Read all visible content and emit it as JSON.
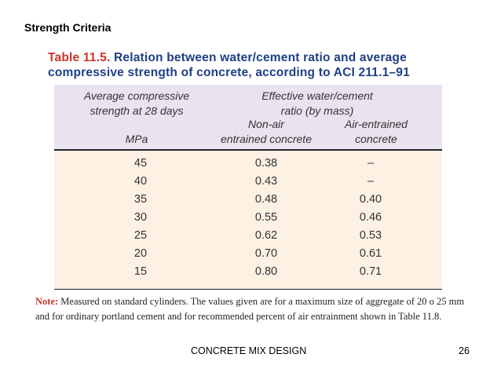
{
  "slide": {
    "title": "Strength Criteria",
    "footer": "CONCRETE MIX DESIGN",
    "page_number": "26"
  },
  "table": {
    "caption_tag": "Table 11.5.",
    "caption_text": "Relation between water/cement ratio and average compressive strength of concrete, according to ACI 211.1–91",
    "headers": {
      "strength_line1": "Average compressive",
      "strength_line2": "strength at 28 days",
      "strength_unit": "MPa",
      "ratio_line1": "Effective water/cement",
      "ratio_line2": "ratio (by mass)",
      "nonair_line1": "Non-air",
      "nonair_line2": "entrained concrete",
      "air_line1": "Air-entrained",
      "air_line2": "concrete"
    },
    "rows": [
      {
        "strength": "45",
        "non_air": "0.38",
        "air": "–"
      },
      {
        "strength": "40",
        "non_air": "0.43",
        "air": "–"
      },
      {
        "strength": "35",
        "non_air": "0.48",
        "air": "0.40"
      },
      {
        "strength": "30",
        "non_air": "0.55",
        "air": "0.46"
      },
      {
        "strength": "25",
        "non_air": "0.62",
        "air": "0.53"
      },
      {
        "strength": "20",
        "non_air": "0.70",
        "air": "0.61"
      },
      {
        "strength": "15",
        "non_air": "0.80",
        "air": "0.71"
      }
    ],
    "note_label": "Note:",
    "note_text": "Measured on standard cylinders. The values given are for a maximum size of aggregate of 20 o 25 mm and for ordinary portland cement and for recommended percent of air entrainment shown in Table 11.8."
  }
}
